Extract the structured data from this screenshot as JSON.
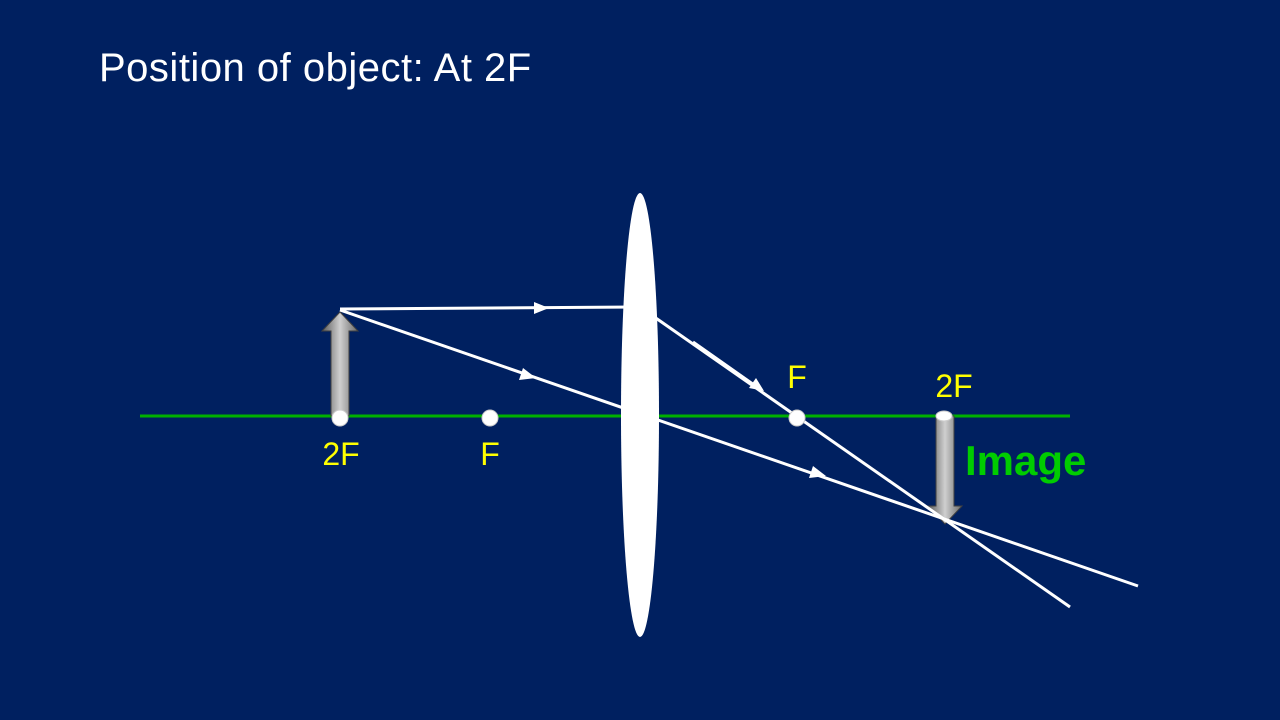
{
  "slide": {
    "title": "Position of object: At 2F",
    "background_color": "#002060",
    "axis_color": "#00b000",
    "ray_color": "#ffffff",
    "label_color": "#ffff00",
    "image_label_color": "#00cc00"
  },
  "labels": {
    "object_2f": "2F",
    "object_f": "F",
    "image_f": "F",
    "image_2f": "2F",
    "image": "Image"
  }
}
